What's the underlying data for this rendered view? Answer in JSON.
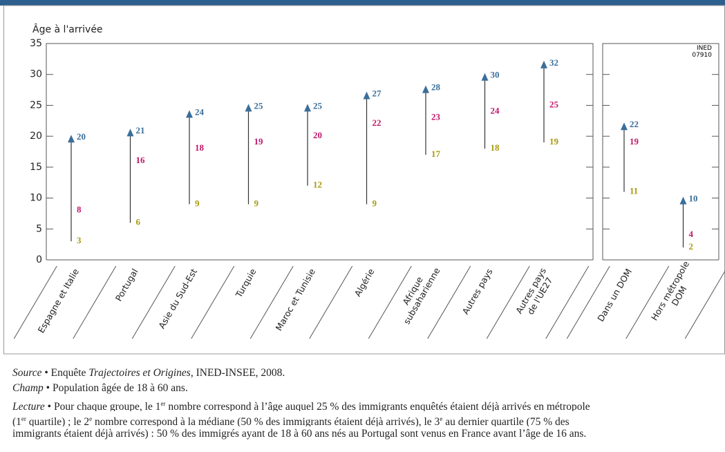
{
  "chart_data": [
    {
      "type": "arrow-range",
      "ylabel": "Âge à l'arrivée",
      "ylim": [
        0,
        35
      ],
      "yticks": [
        0,
        5,
        10,
        15,
        20,
        25,
        30,
        35
      ],
      "categories": [
        [
          "Espagne et Italie"
        ],
        [
          "Portugal"
        ],
        [
          "Asie du Sud-Est"
        ],
        [
          "Turquie"
        ],
        [
          "Maroc et Tunisie"
        ],
        [
          "Algérie"
        ],
        [
          "Afrique",
          "subsaharienne"
        ],
        [
          "Autres pays"
        ],
        [
          "Autres pays",
          "de l'UE27"
        ]
      ],
      "series": [
        {
          "name": "1er quartile",
          "color": "#a89a10",
          "values": [
            3,
            6,
            9,
            9,
            12,
            9,
            17,
            18,
            19
          ]
        },
        {
          "name": "médiane",
          "color": "#c0186a",
          "values": [
            8,
            16,
            18,
            19,
            20,
            22,
            23,
            24,
            25
          ]
        },
        {
          "name": "dernier quartile",
          "color": "#3a6e9a",
          "values": [
            20,
            21,
            24,
            25,
            25,
            27,
            28,
            30,
            32
          ]
        }
      ]
    },
    {
      "type": "arrow-range",
      "ylim": [
        0,
        35
      ],
      "yticks": [
        0,
        5,
        10,
        15,
        20,
        25,
        30,
        35
      ],
      "annotation": [
        "INED",
        "07910"
      ],
      "categories": [
        [
          "Dans un DOM"
        ],
        [
          "Hors métropole",
          "DOM"
        ]
      ],
      "series": [
        {
          "name": "1er quartile",
          "color": "#a89a10",
          "values": [
            11,
            2
          ]
        },
        {
          "name": "médiane",
          "color": "#c0186a",
          "values": [
            19,
            4
          ]
        },
        {
          "name": "dernier quartile",
          "color": "#3a6e9a",
          "values": [
            22,
            10
          ]
        }
      ]
    }
  ],
  "footer": {
    "source": [
      "Source",
      "• Enquête",
      "Trajectoires et Origines",
      ", INED-INSEE, 2008."
    ],
    "champ": [
      "Champ",
      "• Population âgée de 18 à 60 ans."
    ],
    "lecture": [
      "Lecture",
      "• Pour chaque groupe, le 1",
      "er",
      " nombre correspond à l’âge auquel 25 % des immigrants enquêtés étaient déjà arrivés en métropole",
      "(1",
      "er",
      " quartile) ; le 2",
      "e",
      " nombre correspond à la médiane (50 % des immigrants étaient déjà arrivés), le 3",
      "e",
      " au dernier quartile (75 % des",
      "immigrants étaient déjà arrivés) : 50 % des immigrés ayant de 18 à 60 ans nés au Portugal sont venus en France avant l’âge de 16 ans."
    ]
  }
}
